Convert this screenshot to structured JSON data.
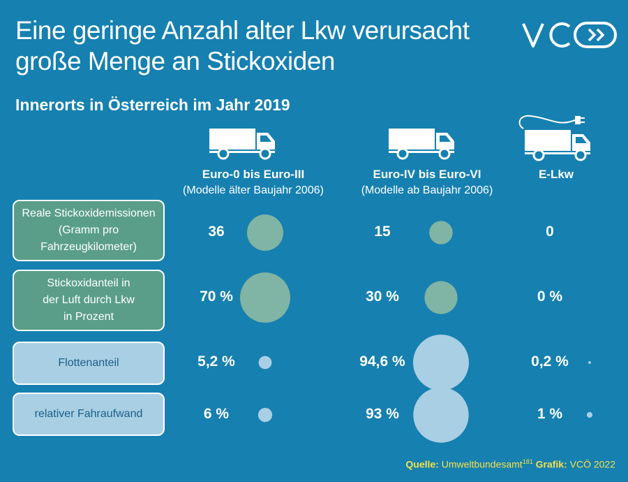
{
  "title_lines": [
    "Eine geringe Anzahl alter Lkw verursacht",
    "große Menge an Stickoxiden"
  ],
  "subtitle": "Innerorts in Österreich im Jahr 2019",
  "logo_text": "VCÖ",
  "colors": {
    "background": "#1680b0",
    "green_bubble": "#80b4a4",
    "blue_bubble": "#a9cfe4",
    "source_text": "#f4e04d"
  },
  "chart_data": {
    "type": "table",
    "columns": [
      {
        "title": "Euro-0 bis Euro-III",
        "subtitle": "(Modelle älter Baujahr 2006)",
        "icon": "truck-icon"
      },
      {
        "title": "Euro-IV bis Euro-VI",
        "subtitle": "(Modelle ab Baujahr 2006)",
        "icon": "truck-icon"
      },
      {
        "title": "E-Lkw",
        "subtitle": "",
        "icon": "electric-truck-icon"
      }
    ],
    "rows": [
      {
        "label_lines": [
          "Reale Stickoxidemissionen",
          "(Gramm pro",
          "Fahrzeugkilometer)"
        ],
        "style": "green",
        "labels": [
          "36",
          "15",
          "0"
        ],
        "values": [
          36,
          15,
          0
        ]
      },
      {
        "label_lines": [
          "Stickoxidanteil in",
          "der Luft durch Lkw",
          "in Prozent"
        ],
        "style": "green",
        "labels": [
          "70 %",
          "30 %",
          "0 %"
        ],
        "values": [
          70,
          30,
          0
        ]
      },
      {
        "label_lines": [
          "Flottenanteil"
        ],
        "style": "blue",
        "labels": [
          "5,2 %",
          "94,6 %",
          "0,2 %"
        ],
        "values": [
          5.2,
          94.6,
          0.2
        ]
      },
      {
        "label_lines": [
          "relativer Fahraufwand"
        ],
        "style": "blue",
        "labels": [
          "6 %",
          "93 %",
          "1 %"
        ],
        "values": [
          6,
          93,
          1
        ]
      }
    ]
  },
  "source": {
    "label": "Quelle:",
    "text": "Umweltbundesamt",
    "footnote": "181",
    "grafik_label": "Grafik:",
    "grafik_text": "VCÖ 2022"
  }
}
